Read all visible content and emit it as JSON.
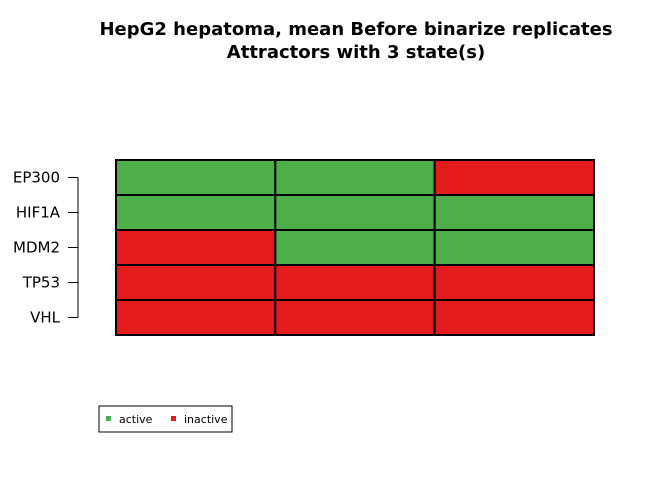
{
  "chart_data": {
    "type": "heatmap",
    "title": "HepG2 hepatoma, mean Before binarize replicates",
    "subtitle": "Attractors with 3 state(s)",
    "rows": [
      "EP300",
      "HIF1A",
      "MDM2",
      "TP53",
      "VHL"
    ],
    "columns": 3,
    "values": [
      [
        1,
        1,
        0
      ],
      [
        1,
        1,
        1
      ],
      [
        0,
        1,
        1
      ],
      [
        0,
        0,
        0
      ],
      [
        0,
        0,
        0
      ]
    ],
    "legend": [
      {
        "label": "active",
        "value": 1,
        "color": "#4daf4a"
      },
      {
        "label": "inactive",
        "value": 0,
        "color": "#e41a1c"
      }
    ],
    "legend_position": "bottom-left",
    "grid": true
  },
  "colors": {
    "active": "#4daf4a",
    "inactive": "#e41a1c",
    "border": "#000000"
  }
}
